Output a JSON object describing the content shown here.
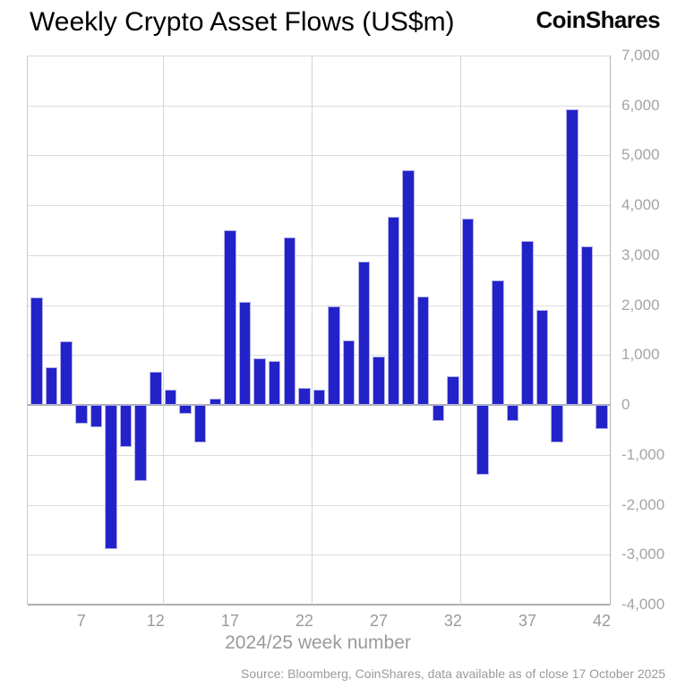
{
  "header": {
    "title": "Weekly Crypto Asset Flows (US$m)",
    "logo": "CoinShares"
  },
  "chart_data": {
    "type": "bar",
    "title": "Weekly Crypto Asset Flows (US$m)",
    "xlabel": "2024/25 week number",
    "ylabel": "",
    "categories": [
      4,
      5,
      6,
      7,
      8,
      9,
      10,
      11,
      12,
      13,
      14,
      15,
      16,
      17,
      18,
      19,
      20,
      21,
      22,
      23,
      24,
      25,
      26,
      27,
      28,
      29,
      30,
      31,
      32,
      33,
      34,
      35,
      36,
      37,
      38,
      39,
      40,
      41,
      42
    ],
    "values": [
      2150,
      760,
      1270,
      -380,
      -450,
      -2890,
      -840,
      -1530,
      660,
      300,
      -180,
      -750,
      130,
      3510,
      2070,
      940,
      880,
      3350,
      340,
      300,
      1980,
      1300,
      2870,
      970,
      3770,
      4700,
      2170,
      -320,
      570,
      3740,
      -1400,
      2490,
      -320,
      3280,
      1900,
      -760,
      5920,
      3170,
      -480
    ],
    "xticks": [
      7,
      12,
      17,
      22,
      27,
      32,
      37,
      42
    ],
    "yticks": [
      7000,
      6000,
      5000,
      4000,
      3000,
      2000,
      1000,
      0,
      -1000,
      -2000,
      -3000,
      -4000
    ],
    "ytick_labels": [
      "7,000",
      "6,000",
      "5,000",
      "4,000",
      "3,000",
      "2,000",
      "1,000",
      "0",
      "-1,000",
      "-2,000",
      "-3,000",
      "-4,000"
    ],
    "ylim": [
      -4000,
      7000
    ],
    "grid": true,
    "vgrid_week_boundaries": [
      12.5,
      22.5,
      32.5
    ],
    "bar_color": "#2322C9",
    "legend_position": "none"
  },
  "footer": {
    "source": "Source: Bloomberg, CoinShares, data available as of close 17 October 2025"
  }
}
